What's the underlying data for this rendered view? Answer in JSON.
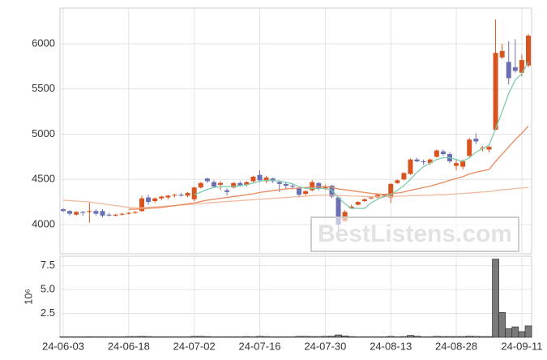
{
  "chart_data": [
    {
      "type": "candlestick",
      "open": [
        4170,
        4150,
        4110,
        4140,
        4140,
        4150,
        4150,
        4110,
        4100,
        4110,
        4120,
        4130,
        4150,
        4300,
        4260,
        4290,
        4300,
        4320,
        4330,
        4320,
        4280,
        4410,
        4510,
        4470,
        4440,
        4380,
        4410,
        4460,
        4440,
        4480,
        4550,
        4480,
        4510,
        4470,
        4450,
        4430,
        4400,
        4340,
        4380,
        4460,
        4400,
        4430,
        4300,
        4040,
        4180,
        4220,
        4260,
        4290,
        4300,
        4320,
        4300,
        4460,
        4500,
        4560,
        4720,
        4700,
        4680,
        4750,
        4810,
        4780,
        4650,
        4640,
        4760,
        4950,
        4840,
        4830,
        5050,
        5850,
        5800,
        5740,
        5680,
        5760
      ],
      "high": [
        4180,
        4160,
        4150,
        4150,
        4240,
        4170,
        4170,
        4130,
        4120,
        4130,
        4140,
        4150,
        4320,
        4330,
        4300,
        4320,
        4330,
        4340,
        4350,
        4360,
        4420,
        4470,
        4520,
        4490,
        4480,
        4400,
        4470,
        4480,
        4480,
        4540,
        4600,
        4540,
        4520,
        4490,
        4470,
        4460,
        4410,
        4380,
        4490,
        4470,
        4440,
        4440,
        4310,
        4160,
        4220,
        4260,
        4290,
        4310,
        4340,
        4340,
        4460,
        4500,
        4580,
        4730,
        4740,
        4720,
        4730,
        4830,
        4830,
        4800,
        4720,
        4720,
        4960,
        5010,
        4870,
        4870,
        6270,
        6000,
        6030,
        6050,
        5880,
        6110
      ],
      "low": [
        4140,
        4100,
        4100,
        4100,
        4020,
        4100,
        4080,
        4090,
        4090,
        4100,
        4110,
        4120,
        4140,
        4220,
        4240,
        4270,
        4280,
        4300,
        4310,
        4300,
        4260,
        4400,
        4460,
        4410,
        4380,
        4320,
        4400,
        4420,
        4420,
        4460,
        4470,
        4460,
        4460,
        4360,
        4400,
        4390,
        4300,
        4320,
        4370,
        4380,
        4380,
        4290,
        3920,
        4030,
        4170,
        4210,
        4250,
        4280,
        4290,
        4300,
        4240,
        4450,
        4490,
        4550,
        4690,
        4660,
        4660,
        4740,
        4760,
        4680,
        4600,
        4610,
        4750,
        4890,
        4810,
        4800,
        5040,
        5830,
        5550,
        5680,
        5640,
        5740
      ],
      "close": [
        4150,
        4120,
        4140,
        4130,
        4150,
        4120,
        4100,
        4100,
        4110,
        4120,
        4130,
        4140,
        4290,
        4250,
        4290,
        4310,
        4320,
        4330,
        4320,
        4350,
        4410,
        4460,
        4480,
        4420,
        4460,
        4360,
        4460,
        4430,
        4470,
        4530,
        4490,
        4520,
        4480,
        4450,
        4430,
        4420,
        4330,
        4370,
        4470,
        4400,
        4420,
        4310,
        4000,
        4140,
        4200,
        4250,
        4280,
        4300,
        4330,
        4330,
        4450,
        4490,
        4570,
        4720,
        4700,
        4690,
        4720,
        4820,
        4780,
        4700,
        4680,
        4700,
        4940,
        4920,
        4850,
        4860,
        5900,
        5920,
        5620,
        5700,
        5820,
        6090
      ],
      "up_color": "#d9531e",
      "down_color": "#6b6fb3",
      "lines": [
        {
          "color": "#f2b89c",
          "values": [
            4270,
            4265,
            4260,
            4255,
            4250,
            4240,
            4230,
            4220,
            4210,
            4200,
            4190,
            4185,
            4185,
            4190,
            4195,
            4200,
            4205,
            4210,
            4215,
            4220,
            4225,
            4230,
            4240,
            4245,
            4250,
            4255,
            4260,
            4265,
            4270,
            4275,
            4280,
            4285,
            4290,
            4295,
            4300,
            4305,
            4310,
            4315,
            4320,
            4325,
            4325,
            4325,
            4320,
            4320,
            4315,
            4315,
            4310,
            4310,
            4310,
            4310,
            4310,
            4315,
            4315,
            4320,
            4320,
            4325,
            4325,
            4330,
            4330,
            4335,
            4340,
            4345,
            4350,
            4355,
            4360,
            4365,
            4375,
            4385,
            4390,
            4400,
            4405,
            4410
          ]
        },
        {
          "color": "#e8895c",
          "values": [
            null,
            null,
            null,
            null,
            null,
            null,
            null,
            null,
            null,
            null,
            4170,
            4170,
            4175,
            4180,
            4185,
            4190,
            4200,
            4210,
            4220,
            4230,
            4240,
            4255,
            4270,
            4280,
            4290,
            4300,
            4310,
            4320,
            4330,
            4340,
            4355,
            4365,
            4375,
            4385,
            4395,
            4400,
            4405,
            4410,
            4415,
            4420,
            4420,
            4410,
            4395,
            4385,
            4375,
            4365,
            4355,
            4345,
            4340,
            4335,
            4340,
            4350,
            4360,
            4380,
            4395,
            4410,
            4425,
            4445,
            4465,
            4490,
            4510,
            4530,
            4560,
            4580,
            4595,
            4610,
            4700,
            4780,
            4860,
            4940,
            5010,
            5090
          ]
        },
        {
          "color": "#7fcbb0",
          "values": [
            null,
            null,
            null,
            null,
            null,
            null,
            null,
            null,
            null,
            null,
            null,
            null,
            null,
            null,
            null,
            null,
            null,
            null,
            null,
            null,
            4330,
            4360,
            4390,
            4410,
            4420,
            4420,
            4420,
            4430,
            4440,
            4460,
            4480,
            4490,
            4490,
            4480,
            4470,
            4450,
            4420,
            4400,
            4400,
            4400,
            4400,
            4380,
            4300,
            4230,
            4180,
            4180,
            4180,
            4240,
            4280,
            4310,
            4330,
            4380,
            4430,
            4500,
            4580,
            4640,
            4680,
            4720,
            4740,
            4740,
            4720,
            4700,
            4740,
            4800,
            4840,
            4880,
            5060,
            5250,
            5450,
            5600,
            5670,
            5800
          ]
        }
      ],
      "ylim": [
        3677,
        6395
      ],
      "yticks": [
        4000,
        4500,
        5000,
        5500,
        6000
      ],
      "grid": true,
      "watermark": "BestListens.com"
    },
    {
      "type": "bar",
      "y_label": "10⁶",
      "categories": [
        "24-06-03",
        null,
        null,
        null,
        null,
        null,
        null,
        null,
        null,
        null,
        "24-06-18",
        null,
        null,
        null,
        null,
        null,
        null,
        null,
        null,
        null,
        "24-07-02",
        null,
        null,
        null,
        null,
        null,
        null,
        null,
        null,
        null,
        "24-07-16",
        null,
        null,
        null,
        null,
        null,
        null,
        null,
        null,
        null,
        "24-07-30",
        null,
        null,
        null,
        null,
        null,
        null,
        null,
        null,
        null,
        "24-08-13",
        null,
        null,
        null,
        null,
        null,
        null,
        null,
        null,
        null,
        "24-08-28",
        null,
        null,
        null,
        null,
        null,
        null,
        null,
        null,
        null,
        "24-09-11",
        null
      ],
      "values": [
        0.05,
        0.05,
        0.05,
        0.05,
        0.06,
        0.05,
        0.05,
        0.05,
        0.05,
        0.05,
        0.08,
        0.08,
        0.1,
        0.08,
        0.05,
        0.05,
        0.05,
        0.05,
        0.05,
        0.05,
        0.1,
        0.1,
        0.08,
        0.05,
        0.05,
        0.05,
        0.05,
        0.05,
        0.08,
        0.05,
        0.1,
        0.08,
        0.05,
        0.05,
        0.05,
        0.05,
        0.1,
        0.1,
        0.08,
        0.08,
        0.1,
        0.12,
        0.25,
        0.15,
        0.08,
        0.05,
        0.05,
        0.05,
        0.05,
        0.05,
        0.1,
        0.05,
        0.08,
        0.2,
        0.12,
        0.05,
        0.05,
        0.1,
        0.08,
        0.08,
        0.08,
        0.08,
        0.12,
        0.1,
        0.08,
        0.08,
        8.2,
        2.6,
        0.9,
        1.1,
        0.6,
        1.2
      ],
      "color": "#7a7a7a",
      "ylim": [
        0,
        8.5
      ],
      "yticks": [
        2.5,
        {
          "value": 5,
          "label": "5.0"
        },
        7.5
      ],
      "grid": true
    }
  ]
}
